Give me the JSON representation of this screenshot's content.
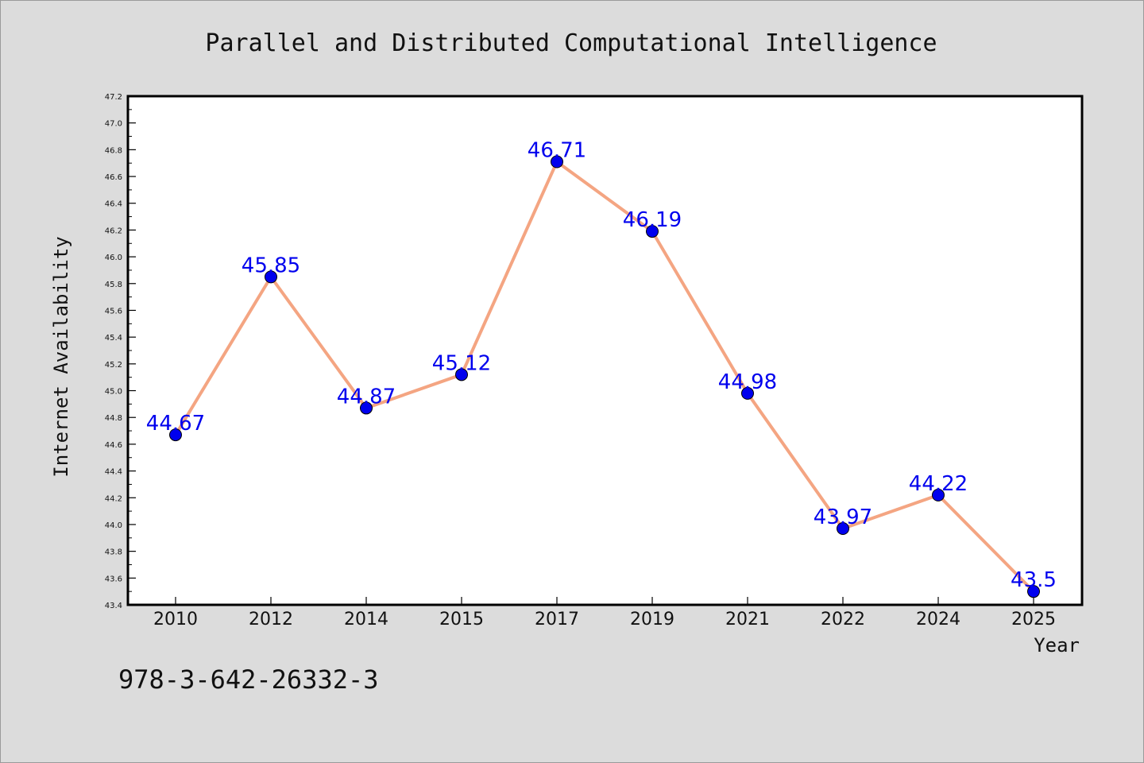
{
  "caption": "978-3-642-26332-3",
  "colors": {
    "line": "#f4a582",
    "marker": "#0000ee",
    "marker_edge": "#000000",
    "label": "#0000ee",
    "plot_bg": "#ffffff",
    "page_bg": "#dcdcdc"
  },
  "chart_data": {
    "type": "line",
    "title": "Parallel and Distributed Computational Intelligence",
    "xlabel": "Year",
    "ylabel": "Internet Availability",
    "categories": [
      "2010",
      "2012",
      "2014",
      "2015",
      "2017",
      "2019",
      "2021",
      "2022",
      "2024",
      "2025"
    ],
    "series": [
      {
        "values": [
          44.67,
          45.85,
          44.87,
          45.12,
          46.71,
          46.19,
          44.98,
          43.97,
          44.22,
          43.5
        ],
        "data_labels": [
          "44.67",
          "45.85",
          "44.87",
          "45.12",
          "46.71",
          "46.19",
          "44.98",
          "43.97",
          "44.22",
          "43.5"
        ]
      }
    ],
    "ylim": [
      43.4,
      47.2
    ],
    "yticks": [
      "43.4",
      "43.6",
      "43.8",
      "44.0",
      "44.2",
      "44.4",
      "44.6",
      "44.8",
      "45.0",
      "45.2",
      "45.4",
      "45.6",
      "45.8",
      "46.0",
      "46.2",
      "46.4",
      "46.6",
      "46.8",
      "47.0",
      "47.2"
    ],
    "grid": false,
    "legend": "none"
  }
}
